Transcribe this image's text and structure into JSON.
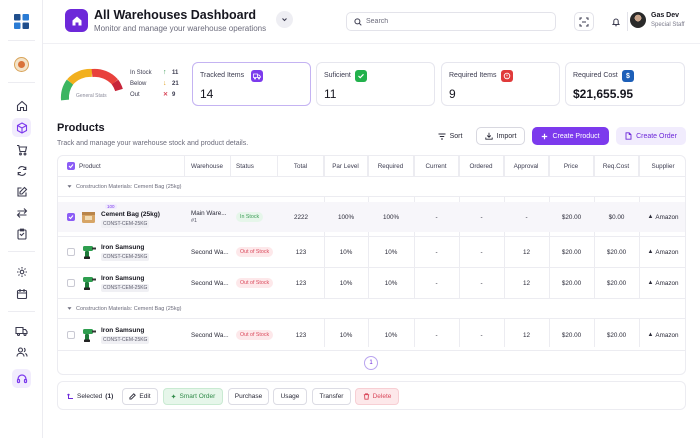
{
  "sidebar": {
    "items": [
      {
        "icon": "home-icon"
      },
      {
        "icon": "box-icon",
        "active": true
      },
      {
        "icon": "cart-icon"
      },
      {
        "icon": "sync-icon"
      },
      {
        "icon": "edit-icon"
      },
      {
        "icon": "transfer-icon"
      },
      {
        "icon": "clipboard-icon"
      },
      {
        "icon": "settings-icon"
      },
      {
        "icon": "calendar-icon"
      },
      {
        "icon": "truck-icon"
      },
      {
        "icon": "users-icon"
      },
      {
        "icon": "headset-icon"
      }
    ]
  },
  "header": {
    "title": "All Warehouses Dashboard",
    "subtitle": "Monitor and manage your warehouse operations",
    "search_placeholder": "Search",
    "user_name": "Gas Dev",
    "user_role": "Special Staff"
  },
  "gauge": {
    "label": "General Stats",
    "rows": [
      {
        "label": "In Stock",
        "arrow": "↑",
        "value": "11",
        "color": "#3b9b56"
      },
      {
        "label": "Below",
        "arrow": "↓",
        "value": "21",
        "color": "#e0a020"
      },
      {
        "label": "Out",
        "arrow": "✕",
        "value": "9",
        "color": "#d9485b"
      }
    ]
  },
  "stats": [
    {
      "label": "Tracked Items",
      "value": "14",
      "icon": "truck-icon",
      "badge_color": "#7c3aed"
    },
    {
      "label": "Suficient",
      "value": "11",
      "icon": "check-icon",
      "badge_color": "#22b14c"
    },
    {
      "label": "Required Items",
      "value": "9",
      "icon": "alert-icon",
      "badge_color": "#e03a3a"
    },
    {
      "label": "Required Cost",
      "value": "$21,655.95",
      "icon": "dollar-icon",
      "badge_color": "#1d5fb8"
    }
  ],
  "products": {
    "title": "Products",
    "subtitle": "Track and manage your warehouse stock and product details.",
    "sort_label": "Sort",
    "import_label": "Import",
    "create_product_label": "Create Product",
    "create_order_label": "Create Order"
  },
  "table": {
    "columns": [
      "Product",
      "Warehouse",
      "Status",
      "Total",
      "Par Level",
      "Required",
      "Current",
      "Ordered",
      "Approval",
      "Price",
      "Req.Cost",
      "Supplier"
    ],
    "groups": [
      {
        "label": "Construction Materials: Cement Bag (25kg)",
        "rows": [
          {
            "badge": "100",
            "name": "Cement Bag (25kg)",
            "code": "CONST-CEM-25KG",
            "warehouse": "Main Ware...",
            "warehouse2": "#1",
            "status": "In Stock",
            "total": "2222",
            "par": "100%",
            "required": "100%",
            "current": "-",
            "ordered": "-",
            "approval": "-",
            "price": "$20.00",
            "reqcost": "$0.00",
            "supplier": "Amazon",
            "checked": true
          },
          {
            "name": "Iron Samsung",
            "code": "CONST-CEM-25KG",
            "warehouse": "Second Wa...",
            "status": "Out of Stock",
            "total": "123",
            "par": "10%",
            "required": "10%",
            "current": "-",
            "ordered": "-",
            "approval": "12",
            "price": "$20.00",
            "reqcost": "$20.00",
            "supplier": "Amazon"
          },
          {
            "name": "Iron Samsung",
            "code": "CONST-CEM-25KG",
            "warehouse": "Second Wa...",
            "status": "Out of Stock",
            "total": "123",
            "par": "10%",
            "required": "10%",
            "current": "-",
            "ordered": "-",
            "approval": "12",
            "price": "$20.00",
            "reqcost": "$20.00",
            "supplier": "Amazon"
          }
        ]
      },
      {
        "label": "Construction Materials: Cement Bag (25kg)",
        "rows": [
          {
            "name": "Iron Samsung",
            "code": "CONST-CEM-25KG",
            "warehouse": "Second Wa...",
            "status": "Out of Stock",
            "total": "123",
            "par": "10%",
            "required": "10%",
            "current": "-",
            "ordered": "-",
            "approval": "12",
            "price": "$20.00",
            "reqcost": "$20.00",
            "supplier": "Amazon"
          }
        ]
      }
    ],
    "page": "1"
  },
  "bottombar": {
    "selected_label": "Selected",
    "selected_count": "(1)",
    "edit": "Edit",
    "smart_order": "Smart Order",
    "purchase": "Purchase",
    "usage": "Usage",
    "transfer": "Transfer",
    "delete": "Delete"
  }
}
